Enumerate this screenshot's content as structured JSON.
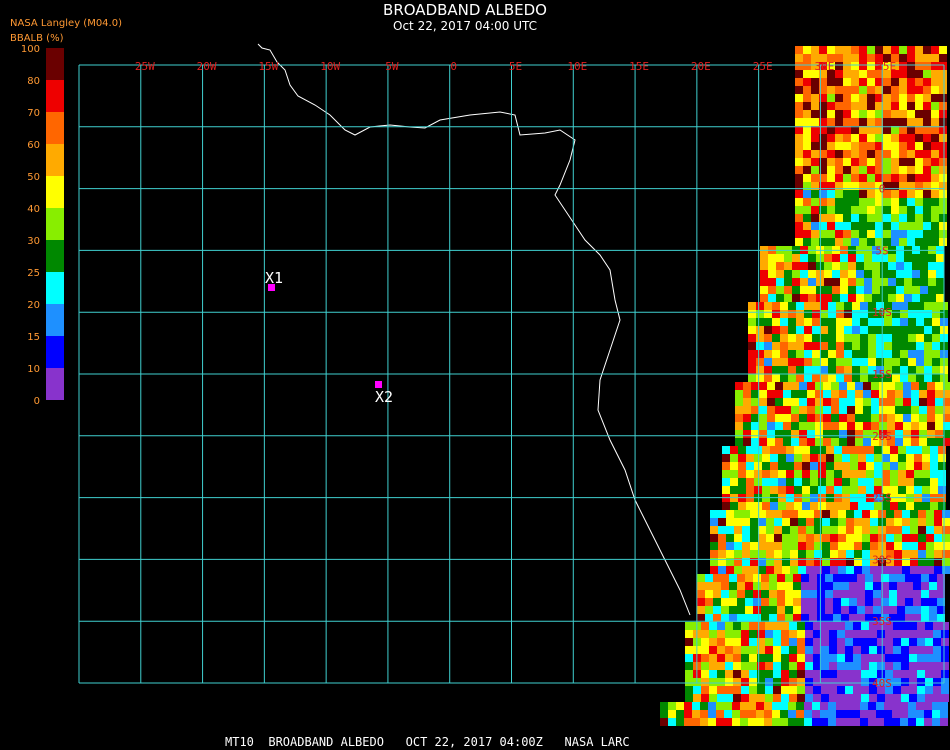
{
  "header": {
    "title": "BROADBAND ALBEDO",
    "subtitle": "Oct 22, 2017 04:00 UTC"
  },
  "legend": {
    "source": "NASA Langley (M04.0)",
    "label": "BBALB (%)",
    "ticks": [
      "100",
      "80",
      "70",
      "60",
      "50",
      "40",
      "30",
      "25",
      "20",
      "15",
      "10",
      "0"
    ],
    "colors": [
      "#6a0000",
      "#ee0000",
      "#ff6600",
      "#ffaa00",
      "#ffff00",
      "#88ee00",
      "#008800",
      "#00ffff",
      "#1e90ff",
      "#0000ff",
      "#8833cc"
    ]
  },
  "map": {
    "lon_labels": [
      "25W",
      "20W",
      "15W",
      "10W",
      "5W",
      "0",
      "5E",
      "10E",
      "15E",
      "20E",
      "25E",
      "30E",
      "35E"
    ],
    "lat_labels": [
      "0",
      "5S",
      "10S",
      "15S",
      "20S",
      "25S",
      "30S",
      "35S",
      "40S"
    ],
    "markers": [
      {
        "label": "X1"
      },
      {
        "label": "X2"
      }
    ]
  },
  "footer": "MT10  BROADBAND ALBEDO   OCT 22, 2017 04:00Z   NASA LARC"
}
